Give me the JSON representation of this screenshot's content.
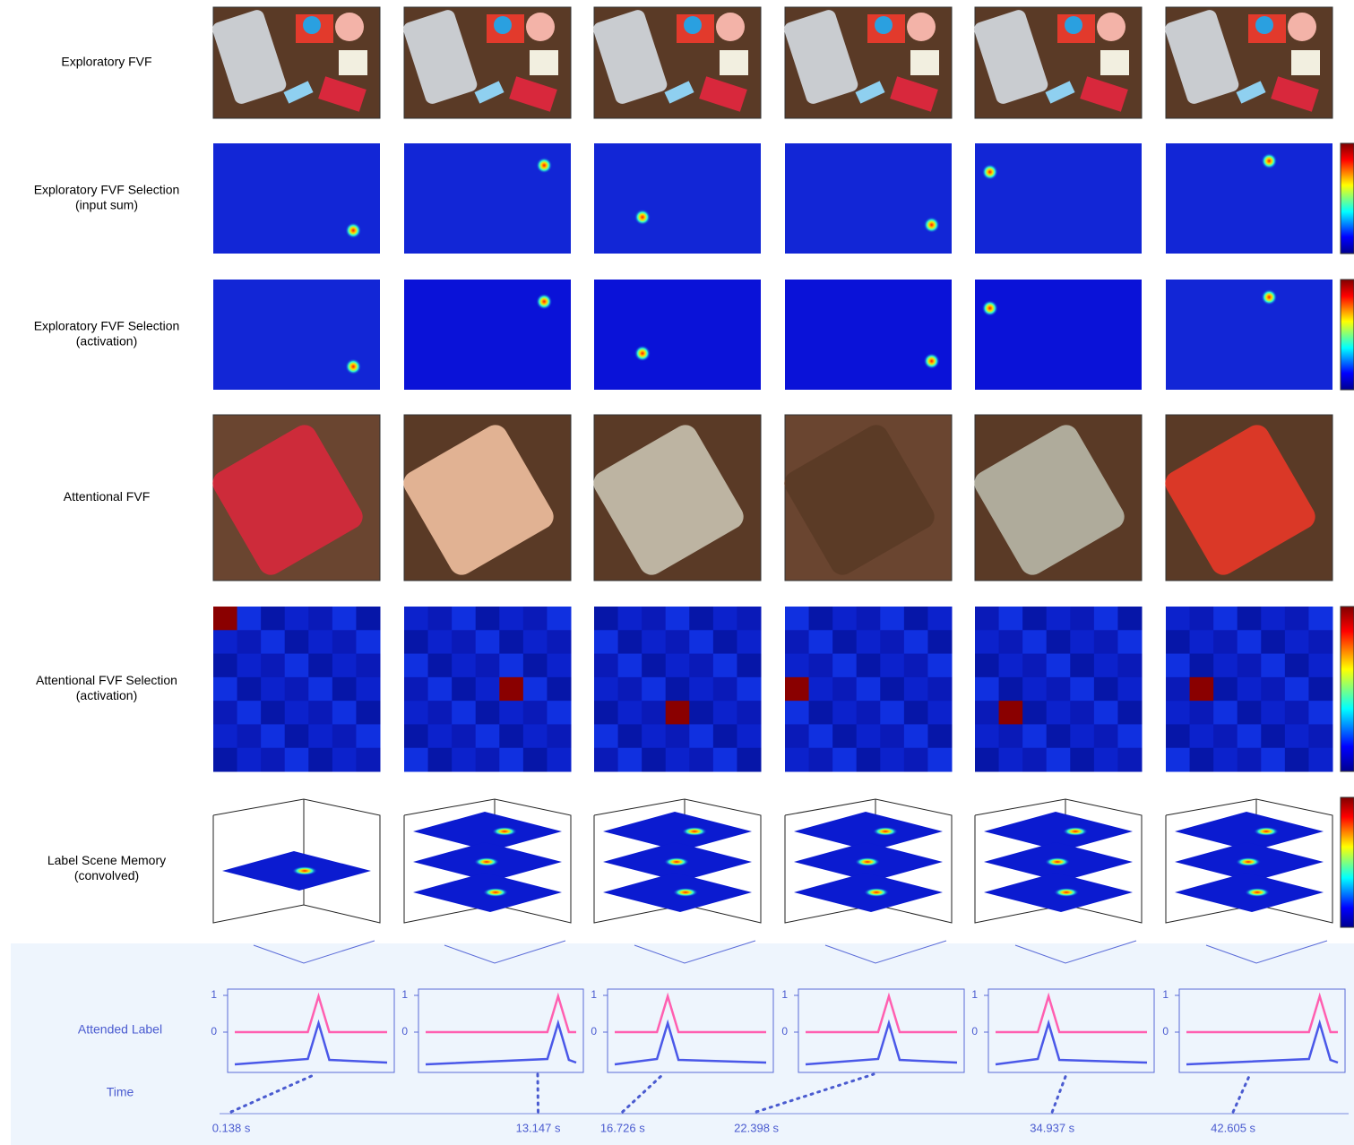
{
  "rows": [
    {
      "lines": [
        "Exploratory FVF"
      ]
    },
    {
      "lines": [
        "Exploratory FVF Selection",
        "(input sum)"
      ]
    },
    {
      "lines": [
        "Exploratory FVF Selection",
        "(activation)"
      ]
    },
    {
      "lines": [
        "Attentional FVF"
      ]
    },
    {
      "lines": [
        "Attentional FVF Selection",
        "(activation)"
      ]
    },
    {
      "lines": [
        "Label Scene Memory",
        "(convolved)"
      ]
    }
  ],
  "attended_label": {
    "label": "Attended Label",
    "yticks": [
      0,
      1
    ]
  },
  "time": {
    "label": "Time",
    "xlim": [
      0,
      47.5
    ],
    "ticks": [
      {
        "value": 0.138,
        "label": "0.138 s"
      },
      {
        "value": 13.147,
        "label": "13.147 s"
      },
      {
        "value": 16.726,
        "label": "16.726 s"
      },
      {
        "value": 22.398,
        "label": "22.398 s"
      },
      {
        "value": 34.937,
        "label": "34.937 s"
      },
      {
        "value": 42.605,
        "label": "42.605 s"
      }
    ]
  }
}
